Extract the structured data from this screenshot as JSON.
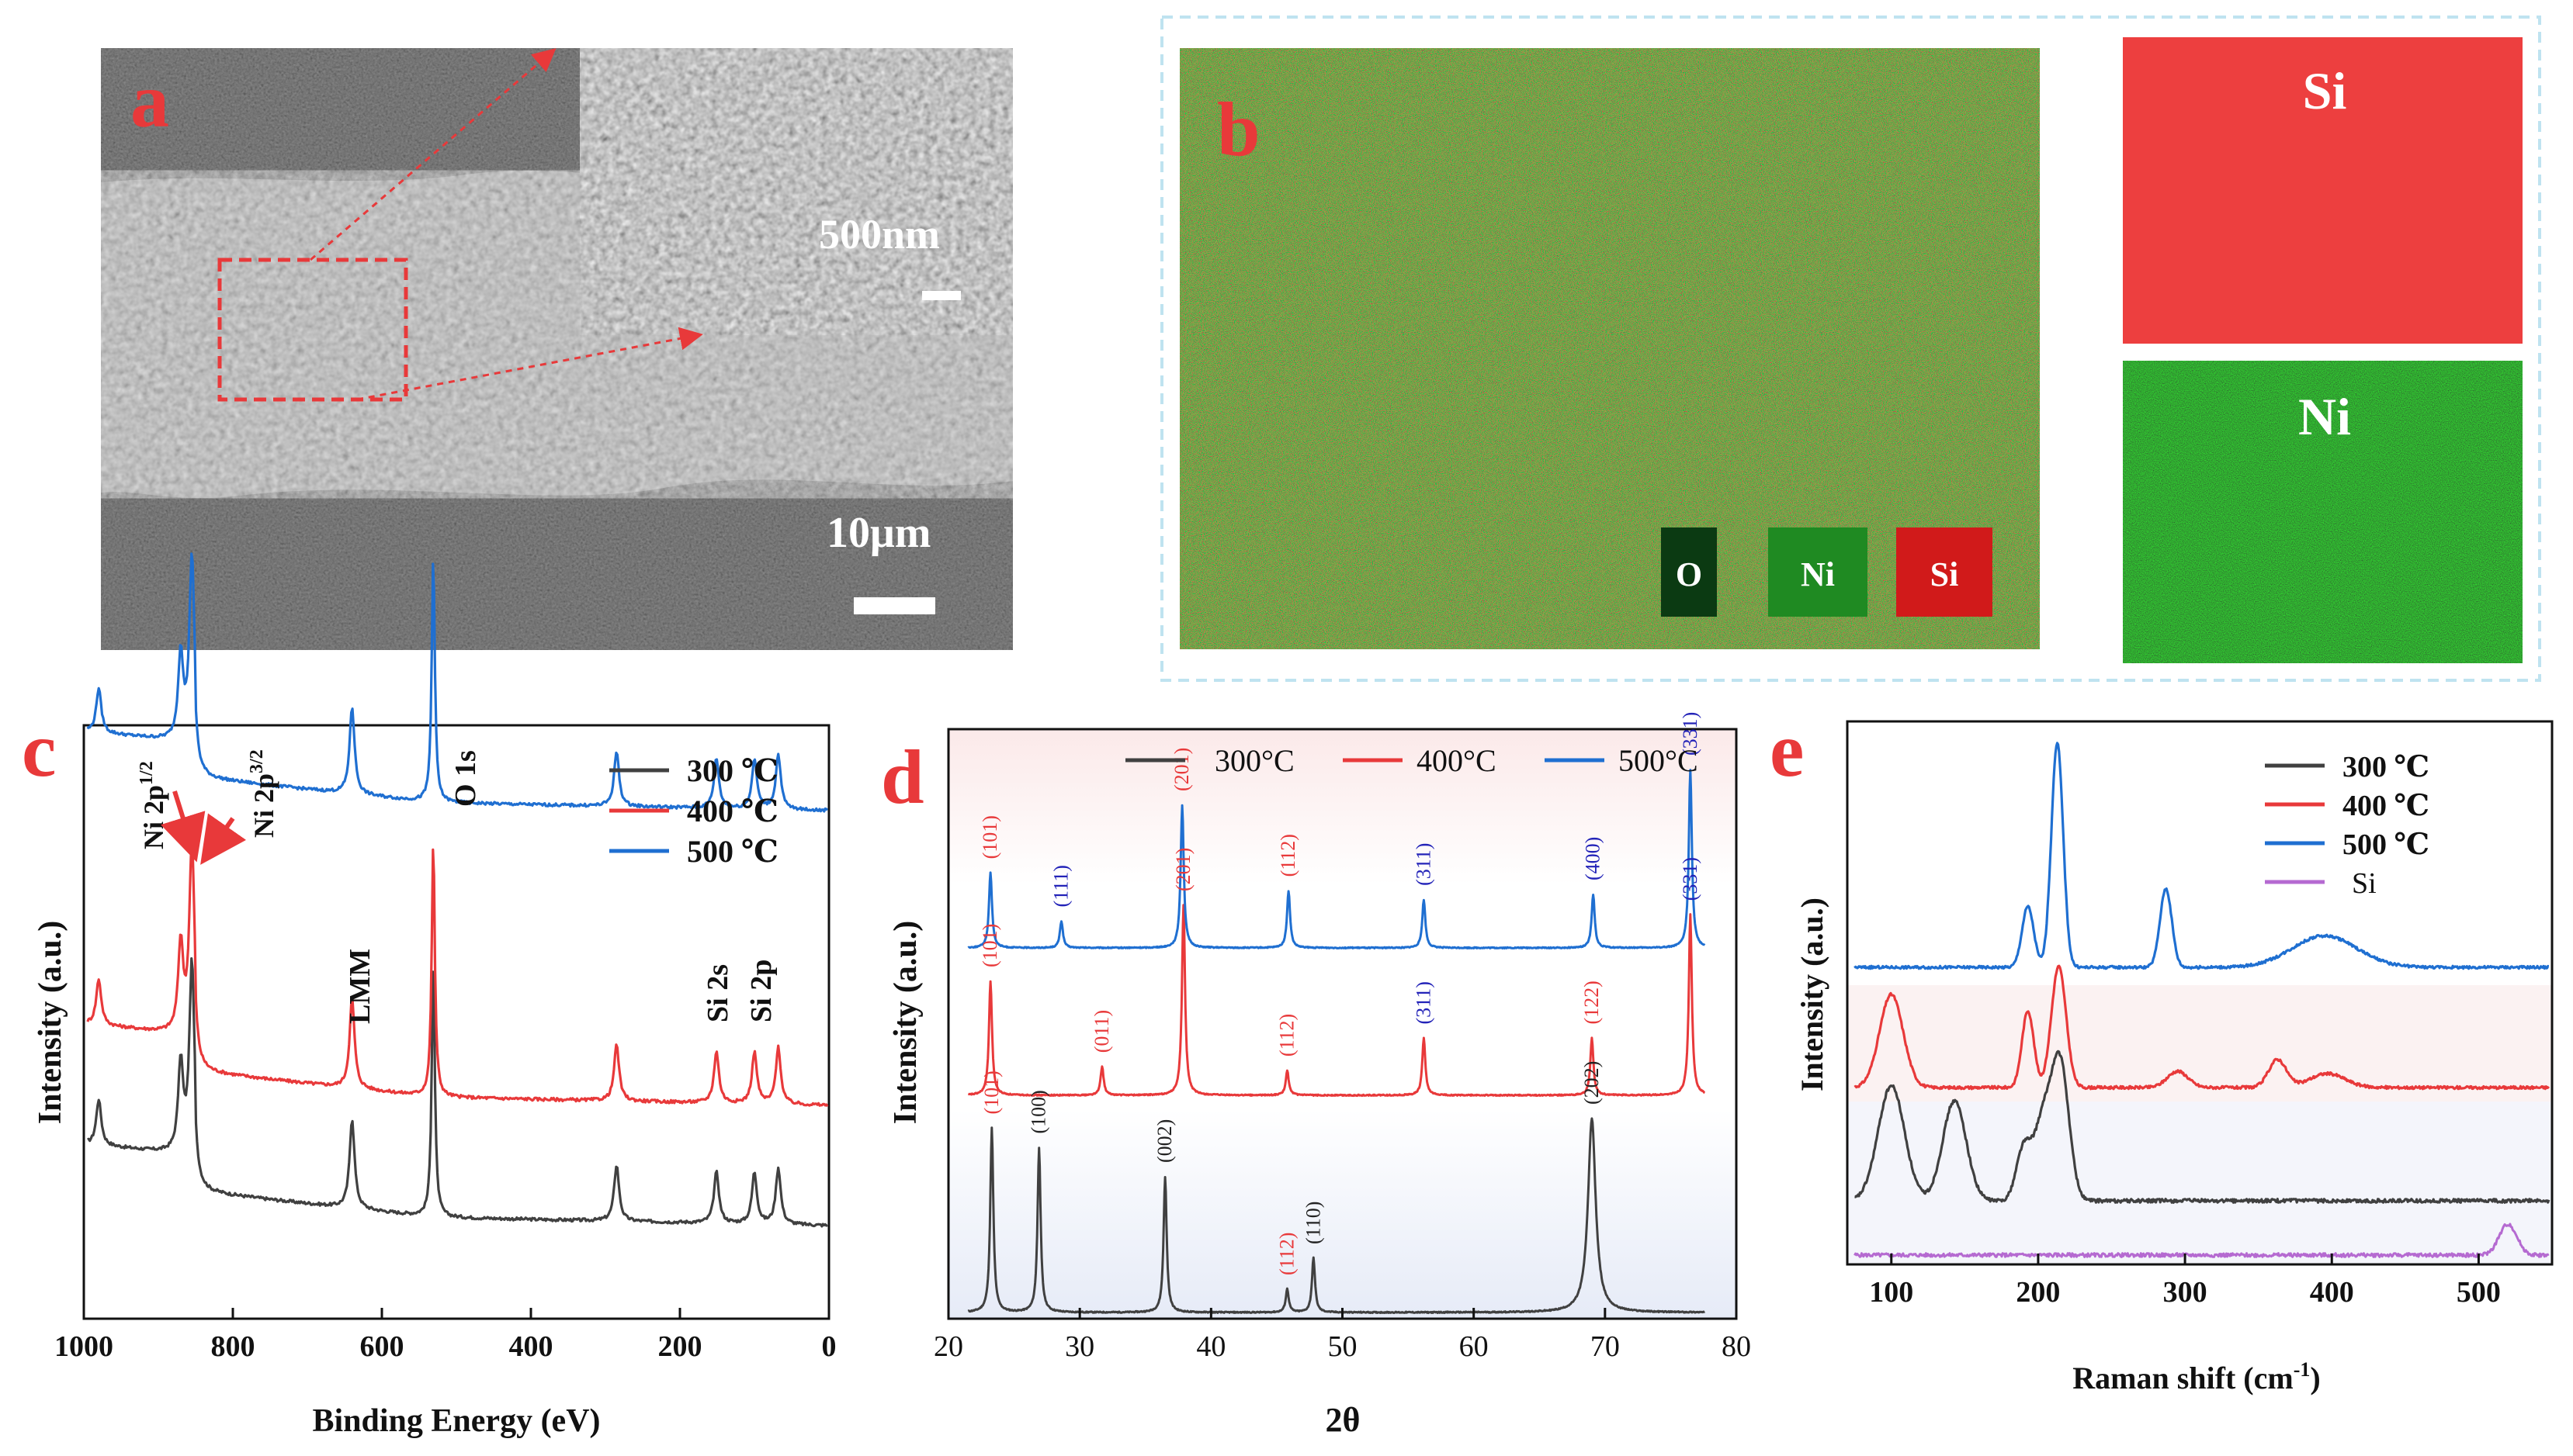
{
  "panels": {
    "a": {
      "label": "a",
      "inset_scale": "500nm",
      "main_scale": "10μm"
    },
    "b": {
      "label": "b",
      "legend": [
        {
          "name": "O",
          "color": "#0b3a12"
        },
        {
          "name": "Ni",
          "color": "#1f8a22"
        },
        {
          "name": "Si",
          "color": "#d11a1a"
        }
      ],
      "map_si": "Si",
      "map_ni": "Ni"
    },
    "c": {
      "label": "c"
    },
    "d": {
      "label": "d"
    },
    "e": {
      "label": "e"
    }
  },
  "chart_data": [
    {
      "id": "c",
      "type": "line",
      "title": "",
      "xlabel": "Binding Energy (eV)",
      "ylabel": "Intensity (a.u.)",
      "xlim": [
        1000,
        0
      ],
      "xticks": [
        1000,
        800,
        600,
        400,
        200,
        0
      ],
      "legend": [
        {
          "name": "300 ℃",
          "color": "#404040"
        },
        {
          "name": "400 ℃",
          "color": "#e8393a"
        },
        {
          "name": "500 ℃",
          "color": "#1f6fd1"
        }
      ],
      "annotations": [
        {
          "text": "Ni 2p",
          "sup": "1/2",
          "x": 870
        },
        {
          "text": "Ni 2p",
          "sup": "3/2",
          "x": 855
        },
        {
          "text": "O 1s",
          "x": 531
        },
        {
          "text": "LMM",
          "x": 640
        },
        {
          "text": "Si 2s",
          "x": 151
        },
        {
          "text": "Si 2p",
          "x": 100
        }
      ],
      "peaks": [
        {
          "x": 980,
          "h": 0.18
        },
        {
          "x": 870,
          "h": 0.35
        },
        {
          "x": 855,
          "h": 0.75
        },
        {
          "x": 640,
          "h": 0.35
        },
        {
          "x": 531,
          "h": 1.0
        },
        {
          "x": 285,
          "h": 0.22
        },
        {
          "x": 151,
          "h": 0.2
        },
        {
          "x": 100,
          "h": 0.2
        },
        {
          "x": 68,
          "h": 0.22
        }
      ]
    },
    {
      "id": "d",
      "type": "line",
      "title": "",
      "xlabel": "2θ",
      "ylabel": "Intensity (a.u.)",
      "xlim": [
        20,
        80
      ],
      "xticks": [
        20,
        30,
        40,
        50,
        60,
        70,
        80
      ],
      "legend": [
        {
          "name": "300°C",
          "color": "#404040"
        },
        {
          "name": "400°C",
          "color": "#e8393a"
        },
        {
          "name": "500°C",
          "color": "#1f6fd1"
        }
      ],
      "series": [
        {
          "name": "300°C",
          "color": "#404040",
          "peaks": [
            {
              "x": 23.3,
              "h": 0.95,
              "label": "(101)",
              "lc": "#e8393a"
            },
            {
              "x": 26.9,
              "h": 0.85,
              "label": "(100)",
              "lc": "#222222"
            },
            {
              "x": 36.5,
              "h": 0.7,
              "label": "(002)",
              "lc": "#222222"
            },
            {
              "x": 45.8,
              "h": 0.12,
              "label": "(112)",
              "lc": "#e8393a"
            },
            {
              "x": 47.8,
              "h": 0.28,
              "label": "(110)",
              "lc": "#222222"
            },
            {
              "x": 69.0,
              "h": 1.0,
              "label": "(202)",
              "lc": "#222222"
            }
          ]
        },
        {
          "name": "400°C",
          "color": "#e8393a",
          "peaks": [
            {
              "x": 23.2,
              "h": 0.6,
              "label": "(101)",
              "lc": "#e8393a"
            },
            {
              "x": 31.7,
              "h": 0.15,
              "label": "(011)",
              "lc": "#e8393a"
            },
            {
              "x": 37.9,
              "h": 1.0,
              "label": "(201)",
              "lc": "#e8393a"
            },
            {
              "x": 45.8,
              "h": 0.13,
              "label": "(112)",
              "lc": "#e8393a"
            },
            {
              "x": 56.2,
              "h": 0.3,
              "label": "(311)",
              "lc": "#2323b8"
            },
            {
              "x": 69.0,
              "h": 0.3,
              "label": "(122)",
              "lc": "#e8393a"
            },
            {
              "x": 76.5,
              "h": 0.95,
              "label": "(331)",
              "lc": "#2323b8"
            }
          ]
        },
        {
          "name": "500°C",
          "color": "#1f6fd1",
          "peaks": [
            {
              "x": 23.2,
              "h": 0.42,
              "label": "(101)",
              "lc": "#e8393a"
            },
            {
              "x": 28.6,
              "h": 0.15,
              "label": "(111)",
              "lc": "#2323b8"
            },
            {
              "x": 37.8,
              "h": 0.8,
              "label": "(201)",
              "lc": "#e8393a"
            },
            {
              "x": 45.9,
              "h": 0.32,
              "label": "(112)",
              "lc": "#e8393a"
            },
            {
              "x": 56.2,
              "h": 0.27,
              "label": "(311)",
              "lc": "#2323b8"
            },
            {
              "x": 69.1,
              "h": 0.3,
              "label": "(400)",
              "lc": "#2323b8"
            },
            {
              "x": 76.5,
              "h": 1.0,
              "label": "(331)",
              "lc": "#2323b8"
            }
          ]
        }
      ]
    },
    {
      "id": "e",
      "type": "line",
      "title": "",
      "xlabel": "Raman shift (cm",
      "xlabel_sup": "-1",
      "xlabel_end": ")",
      "ylabel": "Intensity (a.u.)",
      "xlim": [
        70,
        550
      ],
      "xticks": [
        100,
        200,
        300,
        400,
        500
      ],
      "legend": [
        {
          "name": "300 ℃",
          "color": "#404040"
        },
        {
          "name": "400 ℃",
          "color": "#e8393a"
        },
        {
          "name": "500 ℃",
          "color": "#1f6fd1"
        },
        {
          "name": "Si",
          "color": "#b56ad1"
        }
      ],
      "series": [
        {
          "name": "Si",
          "color": "#b56ad1",
          "peaks": [
            {
              "x": 520,
              "w": 6,
              "h": 0.1
            }
          ]
        },
        {
          "name": "300 ℃",
          "color": "#404040",
          "peaks": [
            {
              "x": 100,
              "w": 9,
              "h": 0.38
            },
            {
              "x": 143,
              "w": 8,
              "h": 0.33
            },
            {
              "x": 190,
              "w": 5,
              "h": 0.17
            },
            {
              "x": 203,
              "w": 6,
              "h": 0.25
            },
            {
              "x": 215,
              "w": 6,
              "h": 0.45
            }
          ]
        },
        {
          "name": "400 ℃",
          "color": "#e8393a",
          "peaks": [
            {
              "x": 100,
              "w": 8,
              "h": 0.4
            },
            {
              "x": 193,
              "w": 4,
              "h": 0.33
            },
            {
              "x": 214,
              "w": 5,
              "h": 0.52
            },
            {
              "x": 295,
              "w": 7,
              "h": 0.07
            },
            {
              "x": 363,
              "w": 6,
              "h": 0.12
            },
            {
              "x": 397,
              "w": 12,
              "h": 0.06
            }
          ]
        },
        {
          "name": "500 ℃",
          "color": "#1f6fd1",
          "peaks": [
            {
              "x": 193,
              "w": 4,
              "h": 0.27
            },
            {
              "x": 213,
              "w": 4,
              "h": 1.0
            },
            {
              "x": 287,
              "w": 4,
              "h": 0.35
            },
            {
              "x": 395,
              "w": 22,
              "h": 0.14
            }
          ]
        }
      ]
    }
  ]
}
